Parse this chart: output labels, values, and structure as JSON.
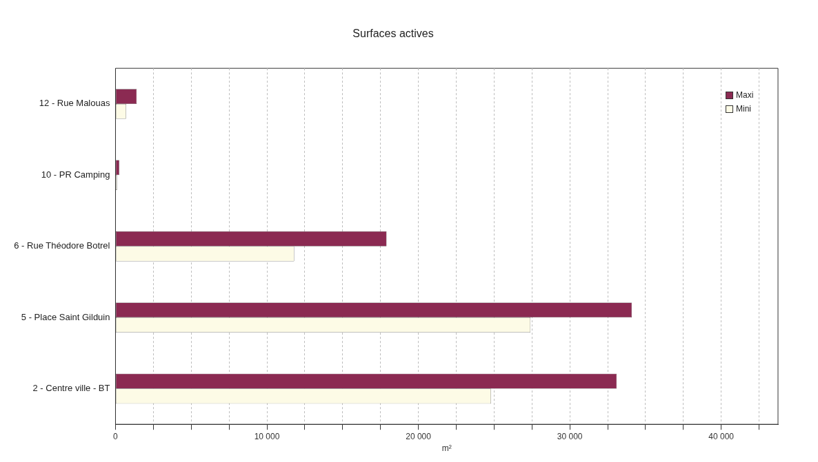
{
  "chart_data": {
    "type": "bar",
    "orientation": "horizontal",
    "title": "Surfaces actives",
    "xlabel": "m²",
    "categories": [
      "12 - Rue Malouas",
      "10 - PR Camping",
      "6 - Rue Théodore Botrel",
      "5 - Place Saint Gilduin",
      "2 - Centre ville - BT"
    ],
    "series": [
      {
        "name": "Maxi",
        "color": "#8b2a52",
        "values": [
          1400,
          250,
          17900,
          34100,
          33100
        ]
      },
      {
        "name": "Mini",
        "color": "#fdfbe6",
        "values": [
          700,
          100,
          11800,
          27400,
          24800
        ]
      }
    ],
    "xlim": [
      0,
      43750
    ],
    "xticks": [
      {
        "value": 0,
        "label": "0"
      },
      {
        "value": 2500,
        "label": null
      },
      {
        "value": 5000,
        "label": null
      },
      {
        "value": 7500,
        "label": null
      },
      {
        "value": 10000,
        "label": "10 000"
      },
      {
        "value": 12500,
        "label": null
      },
      {
        "value": 15000,
        "label": null
      },
      {
        "value": 17500,
        "label": null
      },
      {
        "value": 20000,
        "label": "20 000"
      },
      {
        "value": 22500,
        "label": null
      },
      {
        "value": 25000,
        "label": null
      },
      {
        "value": 27500,
        "label": null
      },
      {
        "value": 30000,
        "label": "30 000"
      },
      {
        "value": 32500,
        "label": null
      },
      {
        "value": 35000,
        "label": null
      },
      {
        "value": 37500,
        "label": null
      },
      {
        "value": 40000,
        "label": "40 000"
      },
      {
        "value": 42500,
        "label": null
      }
    ],
    "grid": "x",
    "legend": "top right"
  }
}
